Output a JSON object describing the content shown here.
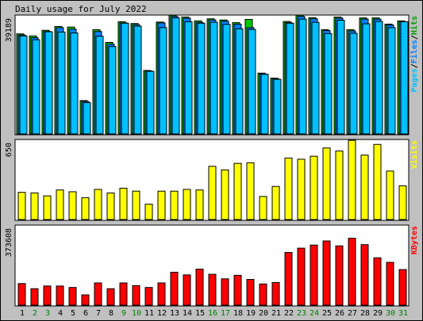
{
  "chart_data": {
    "type": "bar",
    "title": "Daily usage for July 2022",
    "categories": [
      "1",
      "2",
      "3",
      "4",
      "5",
      "6",
      "7",
      "8",
      "9",
      "10",
      "11",
      "12",
      "13",
      "14",
      "15",
      "16",
      "17",
      "18",
      "19",
      "20",
      "21",
      "22",
      "23",
      "24",
      "25",
      "26",
      "27",
      "28",
      "29",
      "30",
      "31"
    ],
    "weekend_days": [
      "2",
      "3",
      "9",
      "10",
      "16",
      "17",
      "23",
      "24",
      "30",
      "31"
    ],
    "day_label_color": "#000000",
    "weekend_label_color": "#008000",
    "panels": [
      {
        "id": "hits",
        "ymax_label": "39189",
        "ylim": [
          0,
          39189
        ],
        "legend_parts": [
          {
            "text": "Pages",
            "color": "#00c0ff"
          },
          {
            "text": "/",
            "color": "#000000"
          },
          {
            "text": "Files",
            "color": "#0080ff"
          },
          {
            "text": "/",
            "color": "#000000"
          },
          {
            "text": "Hits",
            "color": "#00a000"
          }
        ],
        "series": [
          {
            "name": "Hits",
            "color": "#00c800",
            "values": [
              33900,
              33200,
              35100,
              36400,
              36200,
              11300,
              35300,
              31000,
              38000,
              37400,
              21500,
              37900,
              40200,
              39600,
              38300,
              39000,
              38600,
              37700,
              38800,
              20600,
              18900,
              38100,
              40200,
              39400,
              35300,
              39600,
              35300,
              39300,
              39300,
              37200,
              38300
            ]
          },
          {
            "name": "Files",
            "color": "#0080ff",
            "values": [
              33500,
              32600,
              34700,
              36000,
              35500,
              11000,
              34700,
              30400,
              37600,
              37000,
              21300,
              37600,
              39800,
              39200,
              37800,
              38600,
              38200,
              37200,
              36000,
              20300,
              18600,
              37700,
              39800,
              39000,
              35000,
              39200,
              34900,
              38900,
              38900,
              36900,
              38000
            ]
          },
          {
            "name": "Pages",
            "color": "#00c0ff",
            "values": [
              33200,
              31900,
              34600,
              34500,
              34200,
              10600,
              33100,
              29600,
              37500,
              36500,
              21200,
              36000,
              39300,
              38000,
              37500,
              37800,
              37100,
              35600,
              35400,
              20200,
              18500,
              37500,
              38900,
              37800,
              34000,
              38500,
              34100,
              37300,
              38100,
              36000,
              38000
            ]
          }
        ]
      },
      {
        "id": "visits",
        "ymax_label": "650",
        "ylim": [
          0,
          650
        ],
        "legend_parts": [
          {
            "text": "Visits",
            "color": "#ffff00"
          }
        ],
        "series": [
          {
            "name": "Visits",
            "color": "#ffff00",
            "values": [
              230,
              225,
              200,
              250,
              235,
              185,
              255,
              225,
              265,
              240,
              130,
              240,
              240,
              255,
              250,
              450,
              420,
              475,
              480,
              195,
              280,
              520,
              510,
              535,
              605,
              580,
              670,
              545,
              635,
              410,
              285
            ]
          }
        ]
      },
      {
        "id": "kbytes",
        "ymax_label": "373608",
        "ylim": [
          0,
          373608
        ],
        "legend_parts": [
          {
            "text": "KBytes",
            "color": "#ff0000"
          }
        ],
        "series": [
          {
            "name": "KBytes",
            "color": "#ff0000",
            "values": [
              105000,
              80000,
              93000,
              93000,
              86000,
              50000,
              108000,
              80000,
              108000,
              95000,
              86000,
              108000,
              160000,
              147000,
              175000,
              150000,
              128000,
              145000,
              125000,
              103000,
              110000,
              256000,
              277000,
              292000,
              312000,
              288000,
              325000,
              294000,
              230000,
              208000,
              173000
            ]
          }
        ]
      }
    ]
  }
}
